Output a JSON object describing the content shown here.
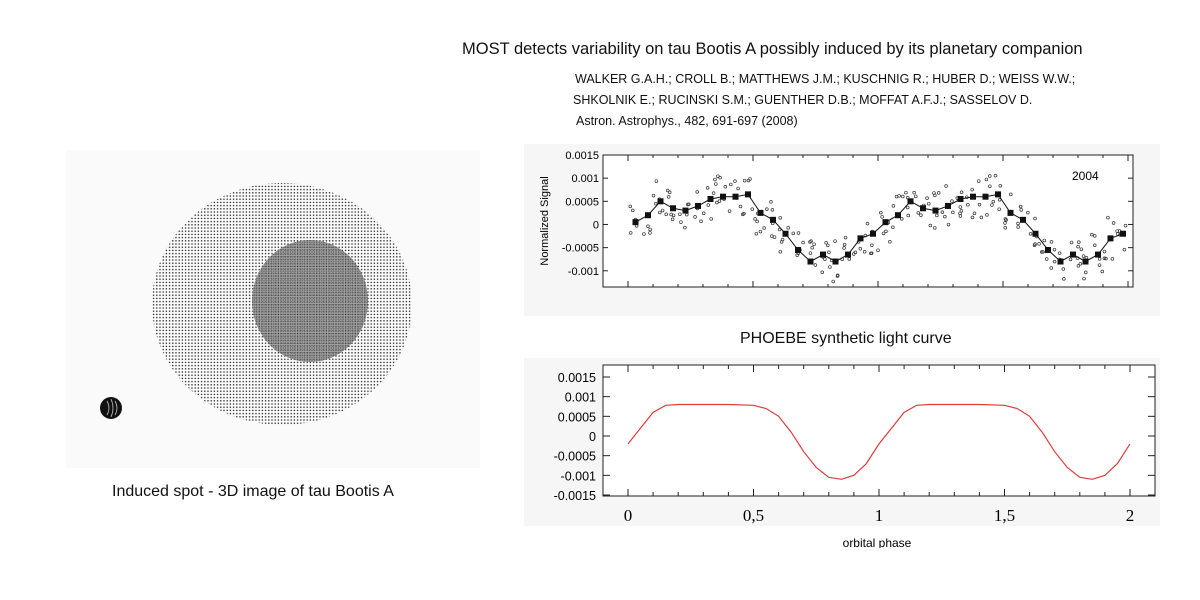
{
  "header": {
    "title": "MOST detects variability on tau Bootis A possibly induced by its planetary companion",
    "authors_line1": "WALKER G.A.H.; CROLL B.; MATTHEWS J.M.; KUSCHNIG R.; HUBER D.; WEISS W.W.;",
    "authors_line2": "SHKOLNIK E.; RUCINSKI S.M.; GUENTHER D.B.; MOFFAT A.F.J.; SASSELOV D.",
    "journal": "Astron. Astrophys., 482, 691-697 (2008)"
  },
  "star_figure": {
    "caption": "Induced spot - 3D image of tau Bootis A"
  },
  "chart_data": [
    {
      "type": "scatter",
      "ylabel": "Normalized Signal",
      "annotation": "2004",
      "ylim": [
        -0.0015,
        0.0015
      ],
      "xlim": [
        0,
        2
      ],
      "yticks": [
        "0.0015",
        "0.001",
        "0.0005",
        "0",
        "-0.0005",
        "-0.001"
      ],
      "series": [
        {
          "x": [
            0.03,
            0.08,
            0.13,
            0.18,
            0.23,
            0.28,
            0.33,
            0.38,
            0.43,
            0.48,
            0.53,
            0.58,
            0.63,
            0.68,
            0.73,
            0.78,
            0.83,
            0.88,
            0.93,
            0.98,
            1.03,
            1.08,
            1.13,
            1.18,
            1.23,
            1.28,
            1.33,
            1.38,
            1.43,
            1.48,
            1.53,
            1.58,
            1.63,
            1.68,
            1.73,
            1.78,
            1.83,
            1.88,
            1.93,
            1.98
          ],
          "y": [
            5e-05,
            0.0002,
            0.0005,
            0.00035,
            0.0003,
            0.0004,
            0.00055,
            0.0006,
            0.0006,
            0.00065,
            0.00025,
            0.0001,
            -0.0002,
            -0.00055,
            -0.0008,
            -0.00065,
            -0.0008,
            -0.00065,
            -0.0003,
            -0.0002,
            5e-05,
            0.0002,
            0.0005,
            0.00035,
            0.0003,
            0.0004,
            0.00055,
            0.0006,
            0.0006,
            0.00065,
            0.00025,
            0.0001,
            -0.0002,
            -0.00055,
            -0.0008,
            -0.00065,
            -0.0008,
            -0.00065,
            -0.0003,
            -0.0002
          ]
        }
      ]
    },
    {
      "type": "line",
      "title": "PHOEBE synthetic light curve",
      "xlabel": "orbital phase",
      "xlim": [
        0,
        2
      ],
      "ylim": [
        -0.0015,
        0.0015
      ],
      "xticks": [
        "0",
        "0,5",
        "1",
        "1,5",
        "2"
      ],
      "yticks": [
        "0.0015",
        "0.001",
        "0.0005",
        "0",
        "-0.0005",
        "-0.001",
        "-0.0015"
      ],
      "series": [
        {
          "color": "#e23b3b",
          "x": [
            0.0,
            0.05,
            0.1,
            0.15,
            0.2,
            0.3,
            0.4,
            0.5,
            0.55,
            0.6,
            0.65,
            0.7,
            0.75,
            0.8,
            0.85,
            0.9,
            0.95,
            1.0,
            1.05,
            1.1,
            1.15,
            1.2,
            1.3,
            1.4,
            1.5,
            1.55,
            1.6,
            1.65,
            1.7,
            1.75,
            1.8,
            1.85,
            1.9,
            1.95,
            2.0
          ],
          "y": [
            -0.0002,
            0.0002,
            0.0006,
            0.00078,
            0.0008,
            0.0008,
            0.0008,
            0.00078,
            0.0007,
            0.0005,
            0.0001,
            -0.0004,
            -0.0008,
            -0.00105,
            -0.0011,
            -0.001,
            -0.0007,
            -0.0002,
            0.0002,
            0.0006,
            0.00078,
            0.0008,
            0.0008,
            0.0008,
            0.00078,
            0.0007,
            0.0005,
            0.0001,
            -0.0004,
            -0.0008,
            -0.00105,
            -0.0011,
            -0.001,
            -0.0007,
            -0.0002
          ]
        }
      ]
    }
  ]
}
